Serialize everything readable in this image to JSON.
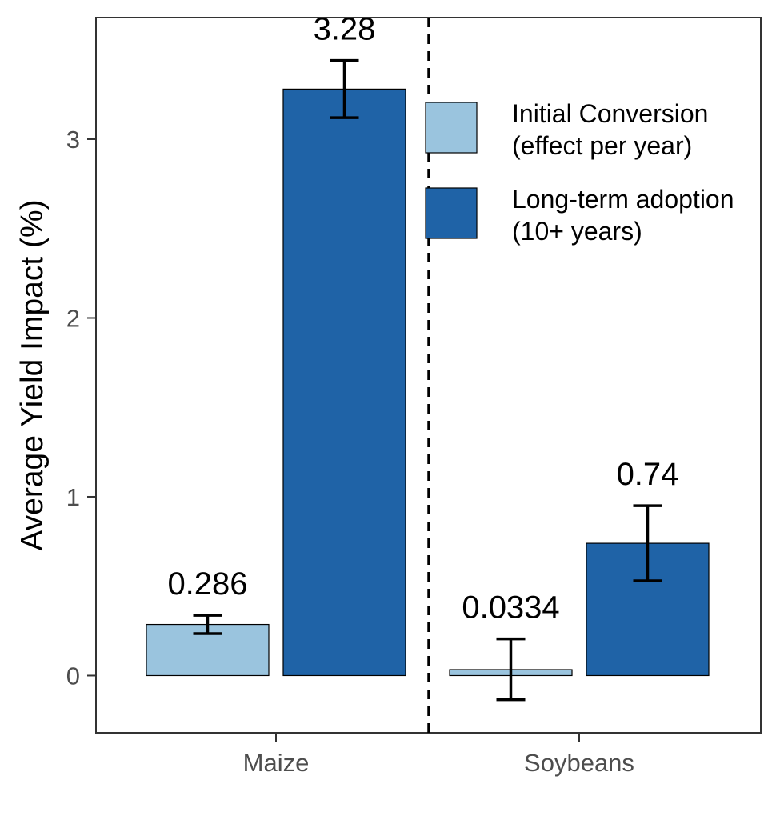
{
  "chart_data": {
    "type": "bar",
    "title": "",
    "xlabel": "",
    "ylabel": "Average Yield Impact (%)",
    "ylim": [
      -0.32,
      3.68
    ],
    "yticks": [
      0,
      1,
      2,
      3
    ],
    "categories": [
      "Maize",
      "Soybeans"
    ],
    "series": [
      {
        "name": "Initial Conversion (effect per year)",
        "legend_lines": [
          "Initial Conversion",
          "(effect per year)"
        ],
        "color": "#9ac4de",
        "values": [
          0.286,
          0.0334
        ],
        "labels": [
          "0.286",
          "0.0334"
        ],
        "err_low": [
          0.235,
          -0.135
        ],
        "err_high": [
          0.337,
          0.205
        ]
      },
      {
        "name": "Long-term adoption (10+ years)",
        "legend_lines": [
          "Long-term adoption",
          "(10+ years)"
        ],
        "color": "#1f63a7",
        "values": [
          3.28,
          0.74
        ],
        "labels": [
          "3.28",
          "0.74"
        ],
        "err_low": [
          3.12,
          0.53
        ],
        "err_high": [
          3.44,
          0.95
        ]
      }
    ],
    "divider": "dashed vertical line between Maize and Soybeans",
    "legend_position": "top-right (inside plot)",
    "grid": false
  }
}
